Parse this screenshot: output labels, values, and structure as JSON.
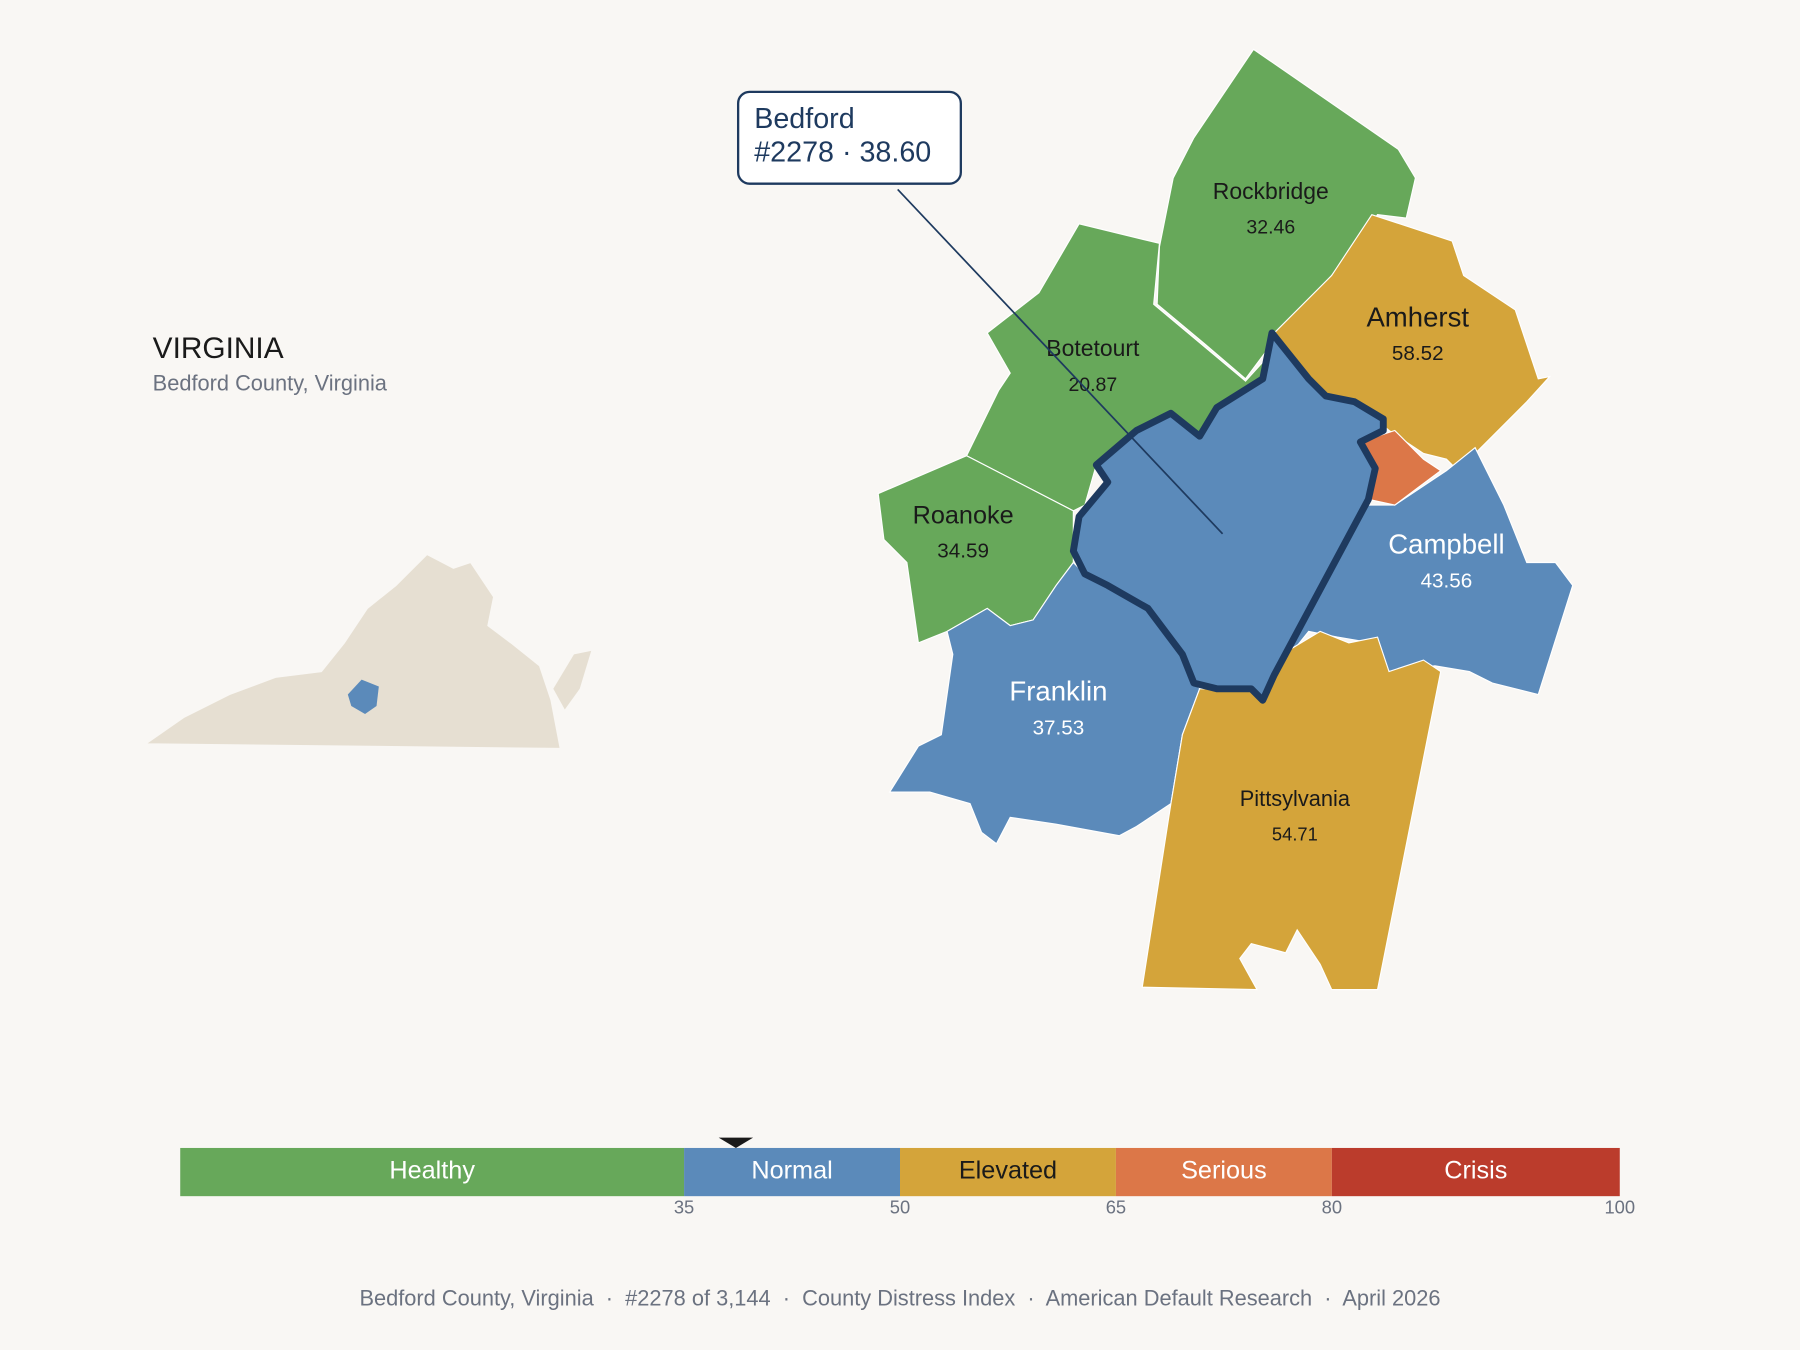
{
  "header": {
    "title": "VIRGINIA",
    "subtitle": "Bedford County, Virginia"
  },
  "callout": {
    "name": "Bedford",
    "text": "#2278 · 38.60"
  },
  "counties": [
    {
      "name": "Rockbridge",
      "value": 32.46,
      "color": "#67a85a"
    },
    {
      "name": "Botetourt",
      "value": 20.87,
      "color": "#67a85a"
    },
    {
      "name": "Roanoke",
      "value": 34.59,
      "color": "#67a85a"
    },
    {
      "name": "Amherst",
      "value": 58.52,
      "color": "#d4a43a"
    },
    {
      "name": "Campbell",
      "value": 43.56,
      "color": "#5b8aba"
    },
    {
      "name": "Franklin",
      "value": 37.53,
      "color": "#5b8aba"
    },
    {
      "name": "Pittsylvania",
      "value": 54.71,
      "color": "#d4a43a"
    }
  ],
  "scale": {
    "domain": [
      0,
      100
    ],
    "ticks": [
      35,
      50,
      65,
      80,
      100
    ],
    "marker": 38.6,
    "bands": [
      {
        "name": "Healthy",
        "color": "#67a85a"
      },
      {
        "name": "Normal",
        "color": "#5b8aba"
      },
      {
        "name": "Elevated",
        "color": "#d4a43a"
      },
      {
        "name": "Serious",
        "color": "#dc7748"
      },
      {
        "name": "Crisis",
        "color": "#bb3c2c"
      }
    ]
  },
  "footer": "Bedford County, Virginia  ·  #2278 of 3,144  ·  County Distress Index  ·  American Default Research  ·  April 2026"
}
